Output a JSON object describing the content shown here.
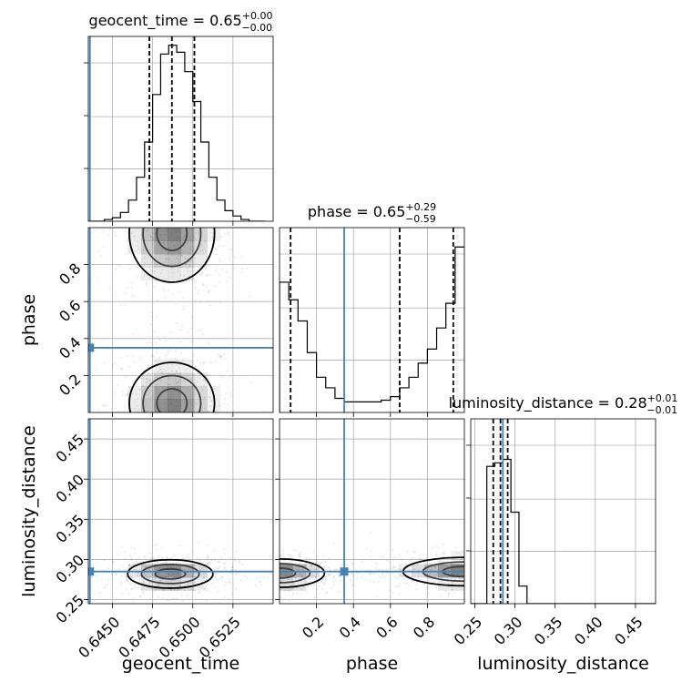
{
  "chart_data": {
    "type": "corner",
    "parameters": [
      "geocent_time",
      "phase",
      "luminosity_distance"
    ],
    "truth": {
      "geocent_time": 0.6436,
      "phase": 0.35,
      "luminosity_distance": 0.285
    },
    "truth_color": "#4682b4",
    "titles": [
      {
        "param": "geocent_time",
        "text": "geocent_time = 0.65",
        "upper": "+0.00",
        "lower": "−0.00"
      },
      {
        "param": "phase",
        "text": "phase = 0.65",
        "upper": "+0.29",
        "lower": "−0.59"
      },
      {
        "param": "luminosity_distance",
        "text": "luminosity_distance = 0.28",
        "upper": "+0.01",
        "lower": "−0.01"
      }
    ],
    "axes": {
      "geocent_time": {
        "label": "geocent_time",
        "range": [
          0.6435,
          0.655
        ],
        "ticks": [
          0.645,
          0.6475,
          0.65,
          0.6525
        ],
        "tick_labels": [
          "0.6450",
          "0.6475",
          "0.6500",
          "0.6525"
        ]
      },
      "phase": {
        "label": "phase",
        "range": [
          0.0,
          1.0
        ],
        "ticks": [
          0.2,
          0.4,
          0.6,
          0.8
        ],
        "tick_labels": [
          "0.2",
          "0.4",
          "0.6",
          "0.8"
        ]
      },
      "luminosity_distance": {
        "label": "luminosity_distance",
        "range": [
          0.245,
          0.475
        ],
        "ticks": [
          0.25,
          0.3,
          0.35,
          0.4,
          0.45
        ],
        "tick_labels": [
          "0.25",
          "0.30",
          "0.35",
          "0.40",
          "0.45"
        ]
      }
    },
    "histograms": {
      "geocent_time": {
        "bins": [
          0.6435,
          0.644,
          0.6445,
          0.645,
          0.6455,
          0.646,
          0.6465,
          0.647,
          0.6475,
          0.648,
          0.6485,
          0.649,
          0.6495,
          0.65,
          0.6505,
          0.651,
          0.6515,
          0.652,
          0.6525,
          0.653,
          0.6535,
          0.654,
          0.6545
        ],
        "values": [
          0.0,
          0.0,
          0.01,
          0.02,
          0.05,
          0.12,
          0.25,
          0.45,
          0.72,
          0.95,
          1.0,
          0.96,
          0.85,
          0.68,
          0.45,
          0.25,
          0.12,
          0.06,
          0.03,
          0.01,
          0.0,
          0.0
        ],
        "quantiles": [
          0.6473,
          0.6487,
          0.6501
        ]
      },
      "phase": {
        "bins": [
          0.0,
          0.05,
          0.1,
          0.15,
          0.2,
          0.25,
          0.3,
          0.35,
          0.4,
          0.45,
          0.5,
          0.55,
          0.6,
          0.65,
          0.7,
          0.75,
          0.8,
          0.85,
          0.9,
          0.95,
          1.0
        ],
        "values": [
          0.74,
          0.64,
          0.52,
          0.34,
          0.2,
          0.14,
          0.08,
          0.06,
          0.06,
          0.06,
          0.06,
          0.07,
          0.09,
          0.14,
          0.2,
          0.28,
          0.36,
          0.48,
          0.62,
          0.94
        ],
        "quantiles": [
          0.06,
          0.65,
          0.94
        ]
      },
      "luminosity_distance": {
        "bins": [
          0.245,
          0.255,
          0.265,
          0.275,
          0.285,
          0.295,
          0.305,
          0.315,
          0.325,
          0.335,
          0.345,
          0.355,
          0.365,
          0.375,
          0.385,
          0.395,
          0.405,
          0.415,
          0.425,
          0.435,
          0.445,
          0.455,
          0.465,
          0.475
        ],
        "values": [
          0.0,
          0.0,
          0.78,
          0.8,
          0.82,
          0.52,
          0.1,
          0.0,
          0.0,
          0.0,
          0.0,
          0.0,
          0.0,
          0.0,
          0.0,
          0.0,
          0.0,
          0.0,
          0.0,
          0.0,
          0.0,
          0.0,
          0.0
        ],
        "quantiles": [
          0.273,
          0.282,
          0.291
        ]
      }
    },
    "density": {
      "geocent_time|phase": {
        "peaks": [
          {
            "x": 0.6487,
            "y": 0.05,
            "sx": 0.0012,
            "sy": 0.1
          },
          {
            "x": 0.6487,
            "y": 0.97,
            "sx": 0.0012,
            "sy": 0.12
          }
        ]
      },
      "geocent_time|luminosity_distance": {
        "peaks": [
          {
            "x": 0.6486,
            "y": 0.282,
            "sx": 0.0012,
            "sy": 0.008
          }
        ]
      },
      "phase|luminosity_distance": {
        "peaks": [
          {
            "x": 0.0,
            "y": 0.283,
            "sx": 0.11,
            "sy": 0.008
          },
          {
            "x": 1.0,
            "y": 0.285,
            "sx": 0.15,
            "sy": 0.008
          }
        ]
      }
    },
    "grid": true
  }
}
